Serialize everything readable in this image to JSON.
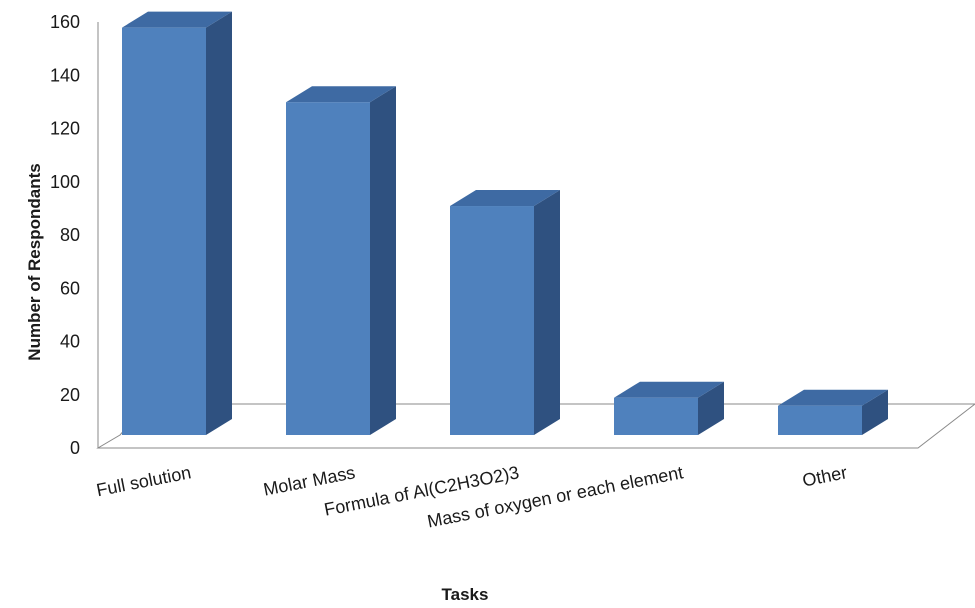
{
  "chart_data": {
    "type": "bar",
    "title": "",
    "xlabel": "Tasks",
    "ylabel": "Number of Respondants",
    "categories": [
      "Full solution",
      "Molar Mass",
      "Formula of Al(C2H3O2)3",
      "Mass of oxygen or each element",
      "Other"
    ],
    "values": [
      153,
      125,
      86,
      14,
      11
    ],
    "ylim": [
      0,
      160
    ],
    "yticks": [
      0,
      20,
      40,
      60,
      80,
      100,
      120,
      140,
      160
    ],
    "grid": false,
    "legend": "none",
    "style": "3d-column"
  },
  "colors": {
    "bar_front": "#4f81bd",
    "bar_side": "#2f5180",
    "bar_top": "#3e6aa3",
    "axis": "#8a8a8a",
    "text": "#1a1a1a"
  }
}
